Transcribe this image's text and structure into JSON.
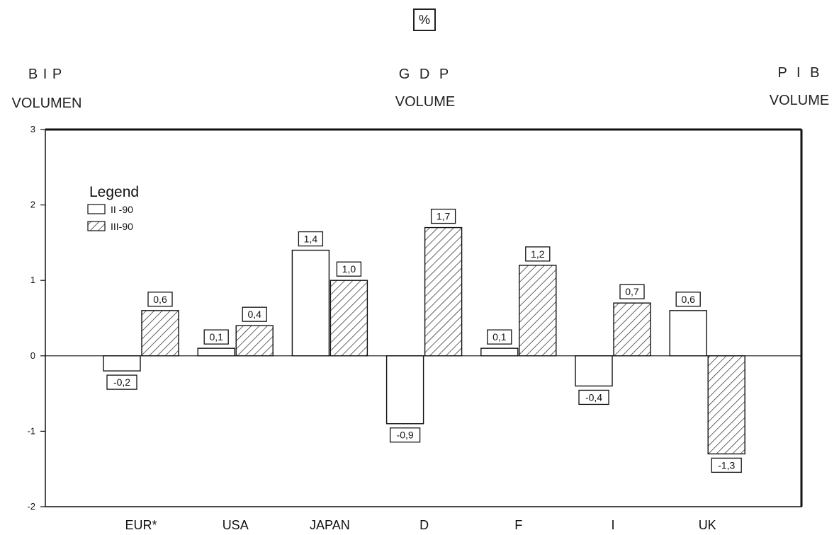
{
  "header": {
    "left_line1": "B I P",
    "left_line2": "VOLUMEN",
    "center_line1": "G D P",
    "center_line2": "VOLUME",
    "right_line1": "P I B",
    "right_line2": "VOLUME",
    "unit": "%"
  },
  "chart_data": {
    "type": "bar",
    "categories": [
      "EUR*",
      "USA",
      "JAPAN",
      "D",
      "F",
      "I",
      "UK"
    ],
    "series": [
      {
        "name": "II -90",
        "values": [
          -0.2,
          0.1,
          1.4,
          -0.9,
          0.1,
          -0.4,
          0.6
        ],
        "labels": [
          "-0,2",
          "0,1",
          "1,4",
          "-0,9",
          "0,1",
          "-0,4",
          "0,6"
        ],
        "fill": "plain"
      },
      {
        "name": "III-90",
        "values": [
          0.6,
          0.4,
          1.0,
          1.7,
          1.2,
          0.7,
          -1.3
        ],
        "labels": [
          "0,6",
          "0,4",
          "1,0",
          "1,7",
          "1,2",
          "0,7",
          "-1,3"
        ],
        "fill": "hatched"
      }
    ],
    "ylim": [
      -2,
      3
    ],
    "yticks": [
      "-2",
      "-1",
      "0",
      "1",
      "2",
      "3"
    ],
    "legend_title": "Legend",
    "legend_position": "top-left",
    "grid": false
  },
  "colors": {
    "ink": "#111111",
    "background": "#ffffff"
  }
}
